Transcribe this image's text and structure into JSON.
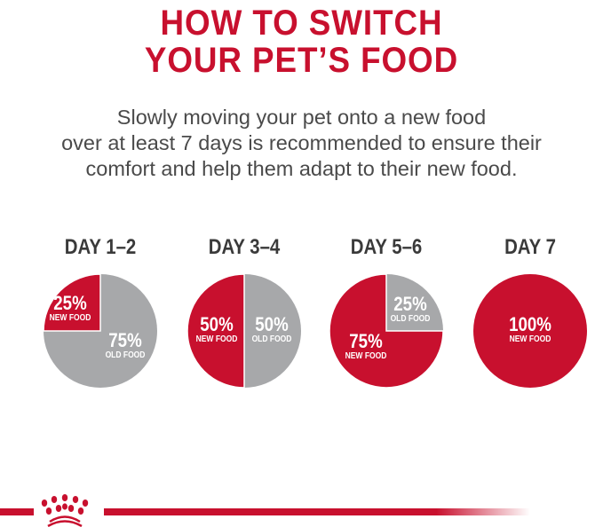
{
  "title": {
    "line1": "HOW TO SWITCH",
    "line2": "YOUR PET’S FOOD"
  },
  "intro": {
    "line1": "Slowly moving your pet onto a new food",
    "line2": "over at least 7 days is recommended to ensure their",
    "line3": "comfort and help them adapt to their new food."
  },
  "colors": {
    "new_food": "#c8102e",
    "old_food": "#a7a8aa",
    "title": "#c8102e",
    "text": "#4a4a4a"
  },
  "stages": [
    {
      "day": "DAY 1–2",
      "new_pct": "25%",
      "new_label": "NEW FOOD",
      "old_pct": "75%",
      "old_label": "OLD FOOD",
      "new_value": 25
    },
    {
      "day": "DAY 3–4",
      "new_pct": "50%",
      "new_label": "NEW FOOD",
      "old_pct": "50%",
      "old_label": "OLD FOOD",
      "new_value": 50
    },
    {
      "day": "DAY 5–6",
      "new_pct": "75%",
      "new_label": "NEW FOOD",
      "old_pct": "25%",
      "old_label": "OLD FOOD",
      "new_value": 75
    },
    {
      "day": "DAY 7",
      "new_pct": "100%",
      "new_label": "NEW FOOD",
      "new_value": 100
    }
  ],
  "logo": {
    "icon": "royal-canin-crown-icon"
  }
}
